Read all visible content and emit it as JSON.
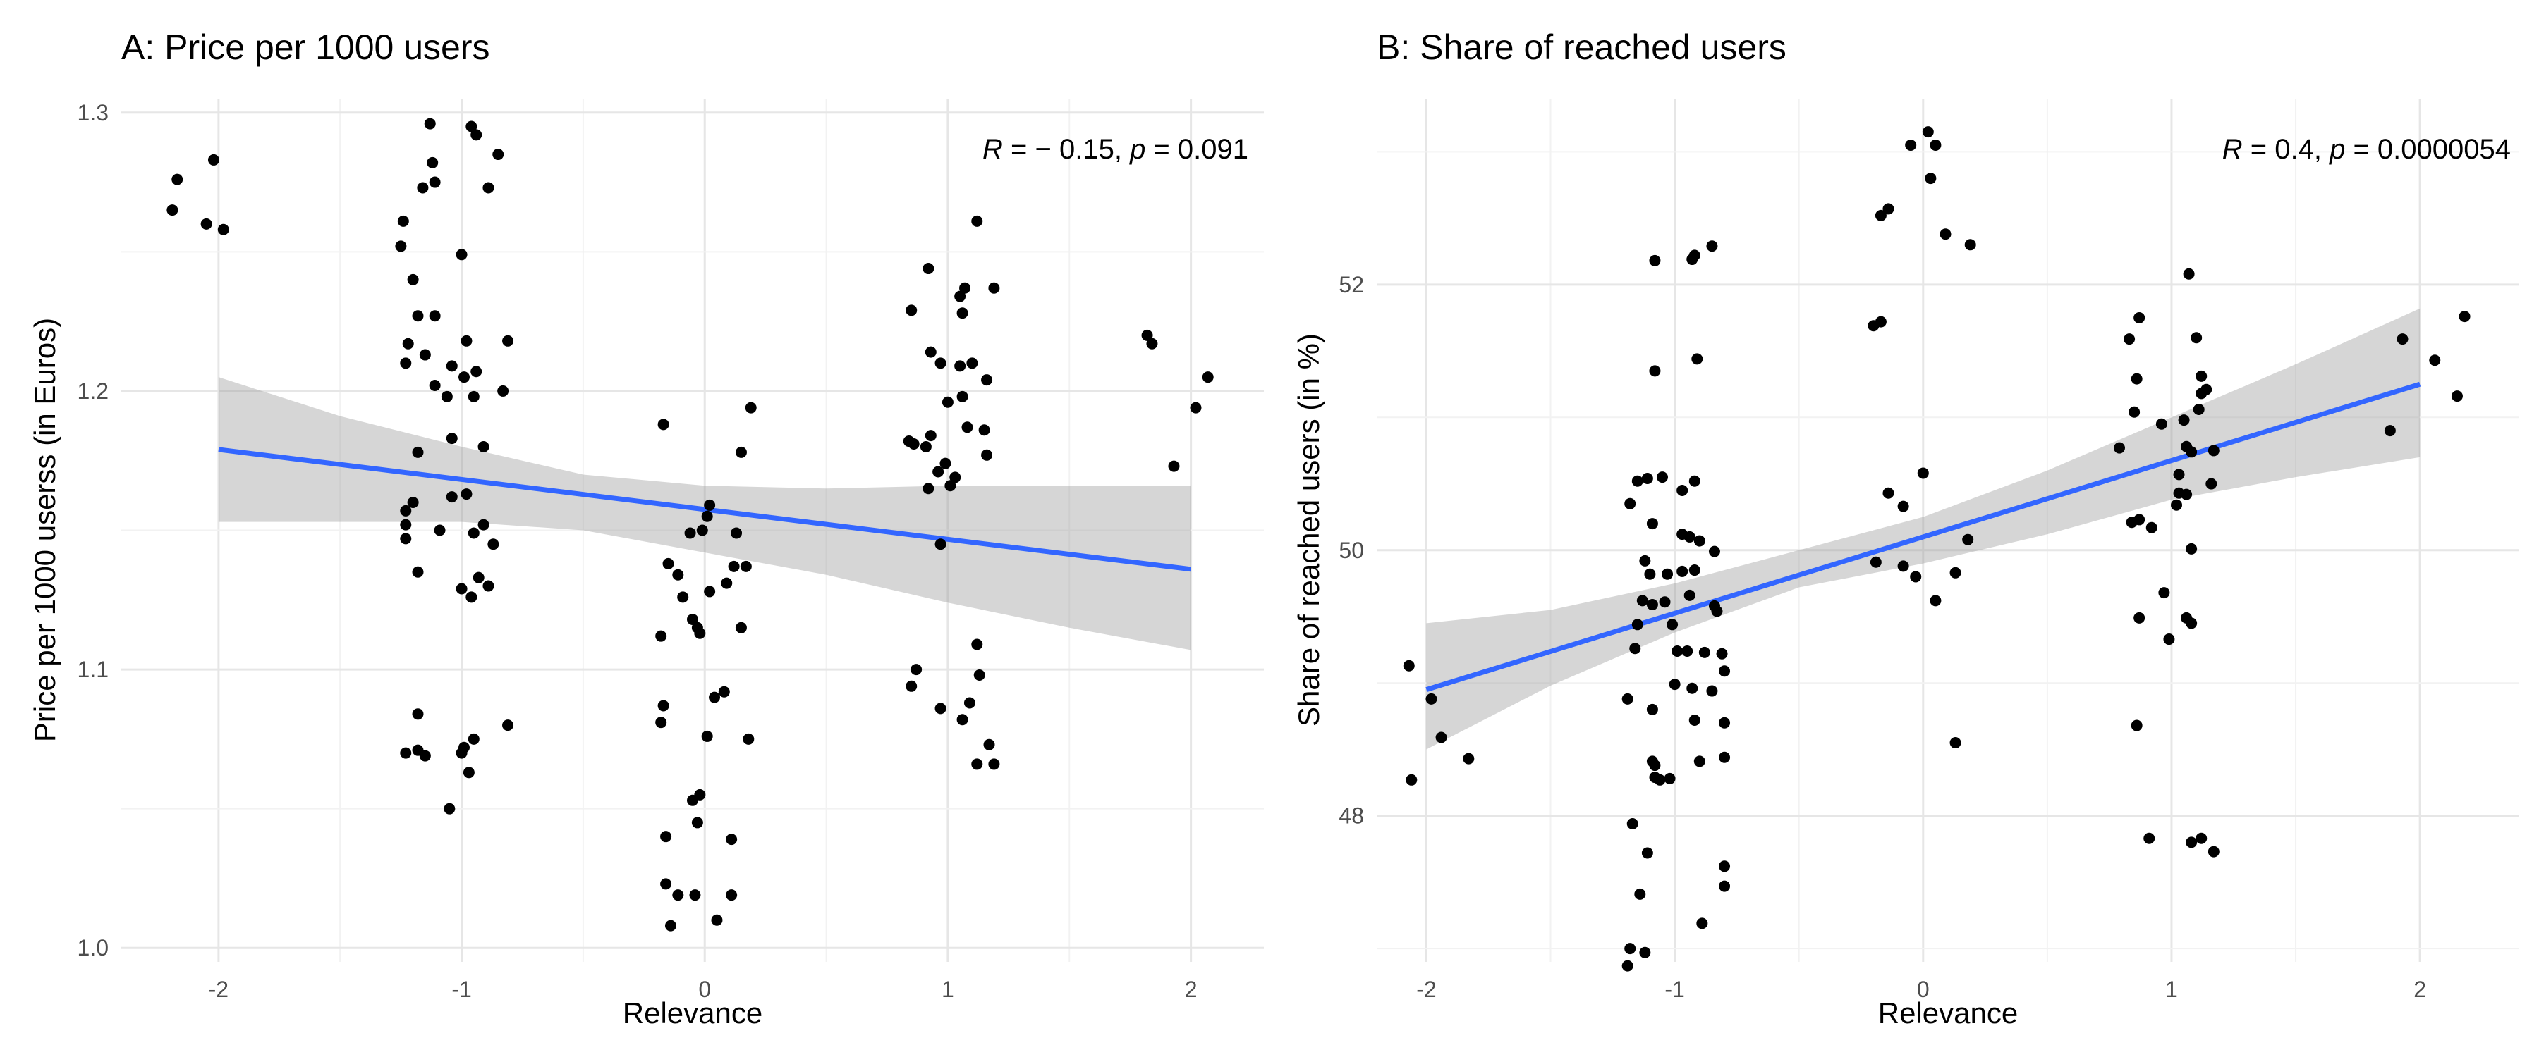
{
  "chart_data": [
    {
      "type": "scatter",
      "title": "A: Price per 1000 users",
      "xlabel": "Relevance",
      "ylabel": "Price per 1000 userss (in Euros)",
      "xlim": [
        -2.4,
        2.3
      ],
      "ylim": [
        0.995,
        1.305
      ],
      "x_ticks": [
        -2,
        -1,
        0,
        1,
        2
      ],
      "x_tick_labels": [
        "-2",
        "-1",
        "0",
        "1",
        "2"
      ],
      "y_ticks": [
        1.0,
        1.1,
        1.2,
        1.3
      ],
      "y_tick_labels": [
        "1.0",
        "1.1",
        "1.2",
        "1.3"
      ],
      "grid": true,
      "stat": {
        "r_label": "R",
        "r_value": " = − 0.15, ",
        "p_label": "p",
        "p_value": " = 0.091"
      },
      "fit": {
        "x": [
          -2,
          2
        ],
        "y": [
          1.179,
          1.136
        ],
        "color": "#3366FF"
      },
      "band": {
        "x": [
          -2,
          -1.5,
          -1,
          -0.5,
          0,
          0.5,
          1,
          1.5,
          2
        ],
        "lower": [
          1.153,
          1.153,
          1.153,
          1.15,
          1.142,
          1.134,
          1.124,
          1.115,
          1.107
        ],
        "upper": [
          1.205,
          1.191,
          1.18,
          1.17,
          1.166,
          1.165,
          1.166,
          1.166,
          1.166
        ]
      },
      "points": [
        [
          -2.19,
          1.265
        ],
        [
          -2.17,
          1.276
        ],
        [
          -2.05,
          1.26
        ],
        [
          -2.02,
          1.283
        ],
        [
          -1.98,
          1.258
        ],
        [
          -1.13,
          1.296
        ],
        [
          -1.12,
          1.282
        ],
        [
          -1.11,
          1.275
        ],
        [
          -1.16,
          1.273
        ],
        [
          -1.24,
          1.261
        ],
        [
          -1.25,
          1.252
        ],
        [
          -1.2,
          1.24
        ],
        [
          -1.0,
          1.249
        ],
        [
          -0.94,
          1.292
        ],
        [
          -0.96,
          1.295
        ],
        [
          -0.89,
          1.273
        ],
        [
          -0.85,
          1.285
        ],
        [
          -1.22,
          1.217
        ],
        [
          -1.18,
          1.227
        ],
        [
          -1.11,
          1.227
        ],
        [
          -1.23,
          1.21
        ],
        [
          -1.15,
          1.213
        ],
        [
          -1.04,
          1.209
        ],
        [
          -1.11,
          1.202
        ],
        [
          -1.06,
          1.198
        ],
        [
          -0.99,
          1.205
        ],
        [
          -0.98,
          1.218
        ],
        [
          -0.94,
          1.207
        ],
        [
          -0.95,
          1.198
        ],
        [
          -0.83,
          1.2
        ],
        [
          -0.81,
          1.218
        ],
        [
          -1.04,
          1.183
        ],
        [
          -1.18,
          1.178
        ],
        [
          -0.91,
          1.18
        ],
        [
          -1.2,
          1.16
        ],
        [
          -1.23,
          1.157
        ],
        [
          -1.23,
          1.152
        ],
        [
          -1.23,
          1.147
        ],
        [
          -1.18,
          1.135
        ],
        [
          -1.09,
          1.15
        ],
        [
          -1.04,
          1.162
        ],
        [
          -0.98,
          1.163
        ],
        [
          -0.95,
          1.149
        ],
        [
          -0.91,
          1.152
        ],
        [
          -0.87,
          1.145
        ],
        [
          -1.0,
          1.129
        ],
        [
          -0.96,
          1.126
        ],
        [
          -0.93,
          1.133
        ],
        [
          -0.89,
          1.13
        ],
        [
          -1.18,
          1.084
        ],
        [
          -1.23,
          1.07
        ],
        [
          -1.18,
          1.071
        ],
        [
          -1.15,
          1.069
        ],
        [
          -0.99,
          1.072
        ],
        [
          -1.0,
          1.07
        ],
        [
          -0.95,
          1.075
        ],
        [
          -0.81,
          1.08
        ],
        [
          -0.97,
          1.063
        ],
        [
          -1.05,
          1.05
        ],
        [
          -0.17,
          1.188
        ],
        [
          -0.15,
          1.138
        ],
        [
          -0.11,
          1.134
        ],
        [
          -0.18,
          1.112
        ],
        [
          -0.09,
          1.126
        ],
        [
          -0.06,
          1.149
        ],
        [
          -0.05,
          1.118
        ],
        [
          -0.03,
          1.115
        ],
        [
          -0.02,
          1.113
        ],
        [
          -0.01,
          1.15
        ],
        [
          0.01,
          1.155
        ],
        [
          0.02,
          1.128
        ],
        [
          0.02,
          1.159
        ],
        [
          0.09,
          1.131
        ],
        [
          0.12,
          1.137
        ],
        [
          0.17,
          1.137
        ],
        [
          0.13,
          1.149
        ],
        [
          0.15,
          1.178
        ],
        [
          0.19,
          1.194
        ],
        [
          0.15,
          1.115
        ],
        [
          0.08,
          1.092
        ],
        [
          0.01,
          1.076
        ],
        [
          0.18,
          1.075
        ],
        [
          -0.17,
          1.087
        ],
        [
          -0.18,
          1.081
        ],
        [
          -0.05,
          1.053
        ],
        [
          -0.02,
          1.055
        ],
        [
          -0.03,
          1.045
        ],
        [
          -0.16,
          1.04
        ],
        [
          0.11,
          1.039
        ],
        [
          0.04,
          1.09
        ],
        [
          -0.16,
          1.023
        ],
        [
          -0.11,
          1.019
        ],
        [
          -0.04,
          1.019
        ],
        [
          0.11,
          1.019
        ],
        [
          -0.14,
          1.008
        ],
        [
          0.05,
          1.01
        ],
        [
          0.92,
          1.244
        ],
        [
          0.85,
          1.229
        ],
        [
          1.05,
          1.234
        ],
        [
          1.07,
          1.237
        ],
        [
          1.19,
          1.237
        ],
        [
          1.06,
          1.228
        ],
        [
          1.12,
          1.261
        ],
        [
          0.93,
          1.214
        ],
        [
          0.97,
          1.21
        ],
        [
          1.05,
          1.209
        ],
        [
          1.1,
          1.21
        ],
        [
          1.0,
          1.196
        ],
        [
          1.06,
          1.198
        ],
        [
          1.16,
          1.204
        ],
        [
          0.84,
          1.182
        ],
        [
          0.86,
          1.181
        ],
        [
          0.91,
          1.18
        ],
        [
          0.93,
          1.184
        ],
        [
          0.96,
          1.171
        ],
        [
          0.99,
          1.174
        ],
        [
          1.01,
          1.166
        ],
        [
          1.08,
          1.187
        ],
        [
          1.15,
          1.186
        ],
        [
          1.16,
          1.177
        ],
        [
          0.92,
          1.165
        ],
        [
          1.03,
          1.169
        ],
        [
          0.97,
          1.145
        ],
        [
          0.87,
          1.1
        ],
        [
          0.85,
          1.094
        ],
        [
          1.12,
          1.109
        ],
        [
          1.13,
          1.098
        ],
        [
          1.09,
          1.088
        ],
        [
          1.06,
          1.082
        ],
        [
          0.97,
          1.086
        ],
        [
          1.12,
          1.066
        ],
        [
          1.17,
          1.073
        ],
        [
          1.19,
          1.066
        ],
        [
          1.82,
          1.22
        ],
        [
          1.84,
          1.217
        ],
        [
          1.93,
          1.173
        ],
        [
          2.02,
          1.194
        ],
        [
          2.07,
          1.205
        ]
      ]
    },
    {
      "type": "scatter",
      "title": "B: Share of reached users",
      "xlabel": "Relevance",
      "ylabel": "Share of reached users (in %)",
      "xlim": [
        -2.2,
        2.4
      ],
      "ylim": [
        46.9,
        53.4
      ],
      "x_ticks": [
        -2,
        -1,
        0,
        1,
        2
      ],
      "x_tick_labels": [
        "-2",
        "-1",
        "0",
        "1",
        "2"
      ],
      "y_ticks": [
        48,
        50,
        52
      ],
      "y_tick_labels": [
        "48",
        "50",
        "52"
      ],
      "grid": true,
      "stat": {
        "r_label": "R",
        "r_value": " = 0.4, ",
        "p_label": "p",
        "p_value": " = 0.0000054"
      },
      "fit": {
        "x": [
          -2,
          2
        ],
        "y": [
          48.95,
          51.25
        ],
        "color": "#3366FF"
      },
      "band": {
        "x": [
          -2,
          -1.5,
          -1,
          -0.5,
          0,
          0.5,
          1,
          1.5,
          2
        ],
        "lower": [
          48.5,
          48.98,
          49.38,
          49.72,
          49.9,
          50.12,
          50.38,
          50.55,
          50.7
        ],
        "upper": [
          49.45,
          49.55,
          49.75,
          50.0,
          50.25,
          50.6,
          51.0,
          51.4,
          51.82
        ]
      },
      "points": [
        [
          -2.07,
          49.13
        ],
        [
          -1.98,
          48.88
        ],
        [
          -1.94,
          48.59
        ],
        [
          -1.83,
          48.43
        ],
        [
          -2.06,
          48.27
        ],
        [
          -1.08,
          52.18
        ],
        [
          -0.93,
          52.19
        ],
        [
          -0.92,
          52.22
        ],
        [
          -0.85,
          52.29
        ],
        [
          -1.08,
          51.35
        ],
        [
          -0.91,
          51.44
        ],
        [
          -1.18,
          50.35
        ],
        [
          -1.15,
          50.52
        ],
        [
          -1.11,
          50.54
        ],
        [
          -1.05,
          50.55
        ],
        [
          -0.97,
          50.45
        ],
        [
          -0.92,
          50.52
        ],
        [
          -1.09,
          50.2
        ],
        [
          -0.97,
          50.12
        ],
        [
          -0.94,
          50.1
        ],
        [
          -0.9,
          50.07
        ],
        [
          -0.84,
          49.99
        ],
        [
          -1.12,
          49.92
        ],
        [
          -1.1,
          49.82
        ],
        [
          -1.03,
          49.82
        ],
        [
          -0.97,
          49.84
        ],
        [
          -0.92,
          49.85
        ],
        [
          -1.13,
          49.62
        ],
        [
          -1.09,
          49.59
        ],
        [
          -1.04,
          49.61
        ],
        [
          -0.94,
          49.66
        ],
        [
          -0.83,
          49.54
        ],
        [
          -0.84,
          49.58
        ],
        [
          -1.15,
          49.44
        ],
        [
          -1.01,
          49.44
        ],
        [
          -1.16,
          49.26
        ],
        [
          -0.99,
          49.24
        ],
        [
          -0.95,
          49.24
        ],
        [
          -0.88,
          49.23
        ],
        [
          -0.81,
          49.22
        ],
        [
          -0.8,
          49.09
        ],
        [
          -1.0,
          48.99
        ],
        [
          -0.93,
          48.96
        ],
        [
          -0.85,
          48.94
        ],
        [
          -1.19,
          48.88
        ],
        [
          -1.09,
          48.8
        ],
        [
          -0.92,
          48.72
        ],
        [
          -0.8,
          48.7
        ],
        [
          -1.09,
          48.41
        ],
        [
          -1.08,
          48.38
        ],
        [
          -1.08,
          48.29
        ],
        [
          -1.06,
          48.27
        ],
        [
          -1.02,
          48.28
        ],
        [
          -0.9,
          48.41
        ],
        [
          -0.8,
          48.44
        ],
        [
          -1.17,
          47.94
        ],
        [
          -1.11,
          47.72
        ],
        [
          -0.8,
          47.62
        ],
        [
          -0.8,
          47.47
        ],
        [
          -1.14,
          47.41
        ],
        [
          -0.89,
          47.19
        ],
        [
          -1.18,
          47.0
        ],
        [
          -1.12,
          46.97
        ],
        [
          -1.19,
          46.87
        ],
        [
          -0.05,
          53.05
        ],
        [
          0.02,
          53.15
        ],
        [
          0.05,
          53.05
        ],
        [
          0.03,
          52.8
        ],
        [
          -0.17,
          52.52
        ],
        [
          -0.14,
          52.57
        ],
        [
          0.09,
          52.38
        ],
        [
          0.19,
          52.3
        ],
        [
          -0.2,
          51.69
        ],
        [
          -0.17,
          51.72
        ],
        [
          -0.14,
          50.43
        ],
        [
          -0.08,
          50.33
        ],
        [
          0.0,
          50.58
        ],
        [
          0.18,
          50.08
        ],
        [
          -0.19,
          49.91
        ],
        [
          -0.08,
          49.88
        ],
        [
          -0.03,
          49.8
        ],
        [
          0.05,
          49.62
        ],
        [
          0.13,
          49.83
        ],
        [
          0.13,
          48.55
        ],
        [
          0.87,
          51.75
        ],
        [
          1.07,
          52.08
        ],
        [
          1.1,
          51.6
        ],
        [
          1.12,
          51.31
        ],
        [
          0.83,
          51.59
        ],
        [
          0.86,
          51.29
        ],
        [
          0.85,
          51.04
        ],
        [
          1.12,
          51.18
        ],
        [
          1.14,
          51.21
        ],
        [
          1.11,
          51.06
        ],
        [
          0.79,
          50.77
        ],
        [
          0.96,
          50.95
        ],
        [
          1.05,
          50.98
        ],
        [
          1.06,
          50.78
        ],
        [
          1.08,
          50.74
        ],
        [
          1.17,
          50.75
        ],
        [
          1.03,
          50.57
        ],
        [
          1.06,
          50.42
        ],
        [
          1.03,
          50.43
        ],
        [
          0.84,
          50.21
        ],
        [
          0.87,
          50.23
        ],
        [
          0.92,
          50.17
        ],
        [
          1.02,
          50.34
        ],
        [
          1.16,
          50.5
        ],
        [
          1.08,
          50.01
        ],
        [
          0.97,
          49.68
        ],
        [
          0.87,
          49.49
        ],
        [
          1.06,
          49.49
        ],
        [
          1.08,
          49.45
        ],
        [
          0.99,
          49.33
        ],
        [
          0.86,
          48.68
        ],
        [
          0.91,
          47.83
        ],
        [
          1.08,
          47.8
        ],
        [
          1.12,
          47.83
        ],
        [
          1.17,
          47.73
        ],
        [
          1.93,
          51.59
        ],
        [
          2.06,
          51.43
        ],
        [
          2.15,
          51.16
        ],
        [
          2.18,
          51.76
        ],
        [
          1.88,
          50.9
        ]
      ]
    }
  ]
}
